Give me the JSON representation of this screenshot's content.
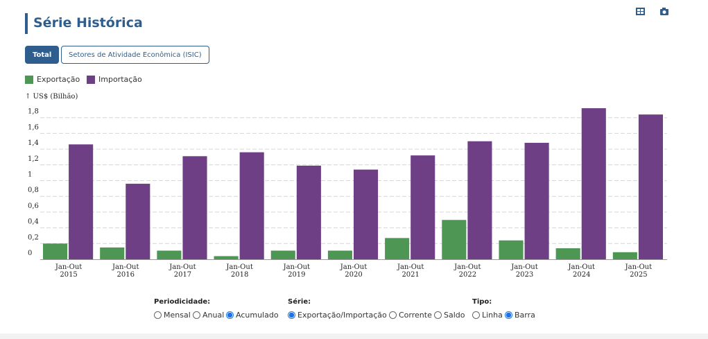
{
  "header": {
    "title": "Série Histórica"
  },
  "tabs": {
    "items": [
      "Total",
      "Setores de Atividade Econômica (ISIC)"
    ],
    "selected": 0
  },
  "controls": [
    {
      "label": "Periodicidade:",
      "options": [
        "Mensal",
        "Anual",
        "Acumulado"
      ],
      "selected": 2
    },
    {
      "label": "Série:",
      "options": [
        "Exportação/Importação",
        "Corrente",
        "Saldo"
      ],
      "selected": 0
    },
    {
      "label": "Tipo:",
      "options": [
        "Linha",
        "Barra"
      ],
      "selected": 1
    }
  ],
  "chart_data": {
    "type": "bar",
    "y_axis_label": "↑ US$ (Bilhão)",
    "categories": [
      "Jan-Out 2015",
      "Jan-Out 2016",
      "Jan-Out 2017",
      "Jan-Out 2018",
      "Jan-Out 2019",
      "Jan-Out 2020",
      "Jan-Out 2021",
      "Jan-Out 2022",
      "Jan-Out 2023",
      "Jan-Out 2024",
      "Jan-Out 2025"
    ],
    "series": [
      {
        "name": "Exportação",
        "color": "#4e9653",
        "values": [
          0.2,
          0.15,
          0.11,
          0.04,
          0.11,
          0.11,
          0.27,
          0.5,
          0.24,
          0.14,
          0.09
        ]
      },
      {
        "name": "Importação",
        "color": "#6f3f86",
        "values": [
          1.46,
          0.96,
          1.31,
          1.36,
          1.19,
          1.14,
          1.32,
          1.5,
          1.48,
          1.92,
          1.84
        ]
      }
    ],
    "ylim": [
      0,
      2
    ],
    "yticks": [
      0,
      {
        "value": 0.2,
        "label": "0,2"
      },
      {
        "value": 0.4,
        "label": "0,4"
      },
      {
        "value": 0.6,
        "label": "0,6"
      },
      {
        "value": 0.8,
        "label": "0,8"
      },
      1,
      {
        "value": 1.2,
        "label": "1,2"
      },
      {
        "value": 1.4,
        "label": "1,4"
      },
      {
        "value": 1.6,
        "label": "1,6"
      },
      {
        "value": 1.8,
        "label": "1,8"
      }
    ],
    "grid": true
  }
}
